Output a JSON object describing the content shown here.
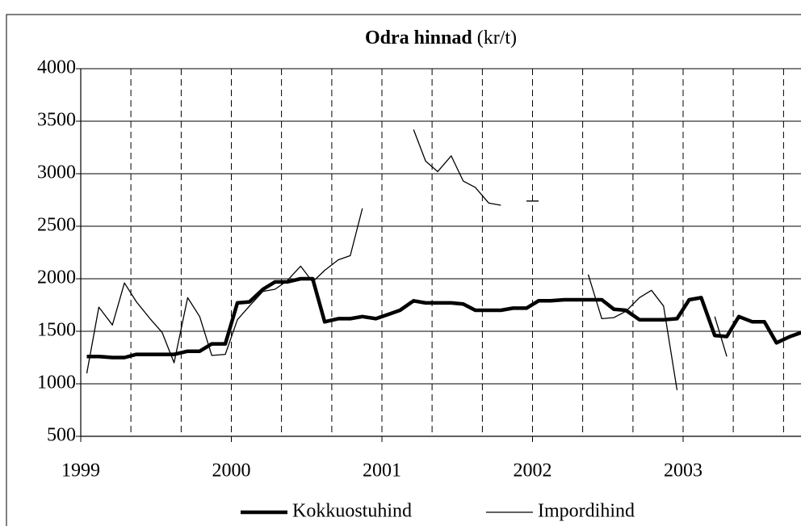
{
  "chart_data": {
    "type": "line",
    "title": "Odra hinnad",
    "title_unit": "(kr/t)",
    "x": [
      1999.04,
      1999.12,
      1999.21,
      1999.29,
      1999.37,
      1999.46,
      1999.54,
      1999.62,
      1999.71,
      1999.79,
      1999.87,
      1999.96,
      2000.04,
      2000.12,
      2000.21,
      2000.29,
      2000.37,
      2000.46,
      2000.54,
      2000.62,
      2000.71,
      2000.79,
      2000.87,
      2000.96,
      2001.04,
      2001.12,
      2001.21,
      2001.29,
      2001.37,
      2001.46,
      2001.54,
      2001.62,
      2001.71,
      2001.79,
      2001.87,
      2001.96,
      2002.04,
      2002.12,
      2002.21,
      2002.29,
      2002.37,
      2002.46,
      2002.54,
      2002.62,
      2002.71,
      2002.79,
      2002.87,
      2002.96,
      2003.04,
      2003.12,
      2003.21,
      2003.29,
      2003.37,
      2003.46,
      2003.54,
      2003.62,
      2003.71,
      2003.79
    ],
    "series": [
      {
        "name": "Kokkuostuhind",
        "color": "#000000",
        "width": 4.5,
        "values": [
          1260,
          1260,
          1250,
          1250,
          1280,
          1280,
          1280,
          1280,
          1310,
          1310,
          1380,
          1380,
          1770,
          1780,
          1900,
          1970,
          1970,
          2000,
          2000,
          1590,
          1620,
          1620,
          1640,
          1620,
          1660,
          1700,
          1790,
          1770,
          1770,
          1770,
          1760,
          1700,
          1700,
          1700,
          1720,
          1720,
          1790,
          1790,
          1800,
          1800,
          1800,
          1800,
          1710,
          1700,
          1610,
          1610,
          1610,
          1620,
          1800,
          1820,
          1460,
          1450,
          1640,
          1590,
          1590,
          1390,
          1450,
          1490
        ]
      },
      {
        "name": "Impordihind",
        "color": "#000000",
        "width": 1.3,
        "values": [
          1100,
          1730,
          1560,
          1960,
          1780,
          1620,
          1490,
          1200,
          1820,
          1640,
          1270,
          1280,
          1610,
          1740,
          1880,
          1900,
          1980,
          2120,
          1970,
          2080,
          2180,
          2220,
          2670,
          null,
          null,
          null,
          3420,
          3120,
          3020,
          3170,
          2930,
          2870,
          2720,
          2700,
          null,
          2740,
          2740,
          null,
          null,
          null,
          2040,
          1620,
          1630,
          1690,
          1820,
          1890,
          1740,
          940,
          null,
          null,
          1640,
          1260,
          null,
          null,
          null,
          null,
          null,
          null
        ]
      }
    ],
    "xlim": [
      1999,
      2003.8
    ],
    "xticks": [
      1999,
      2000,
      2001,
      2002,
      2003
    ],
    "xgrid_ticks": [
      1999.333,
      1999.667,
      2000,
      2000.333,
      2000.667,
      2001,
      2001.333,
      2001.667,
      2002,
      2002.333,
      2002.667,
      2003,
      2003.333,
      2003.667
    ],
    "ylim": [
      500,
      4000
    ],
    "yticks": [
      500,
      1000,
      1500,
      2000,
      2500,
      3000,
      3500,
      4000
    ],
    "grid": true,
    "legend": "bottom"
  }
}
